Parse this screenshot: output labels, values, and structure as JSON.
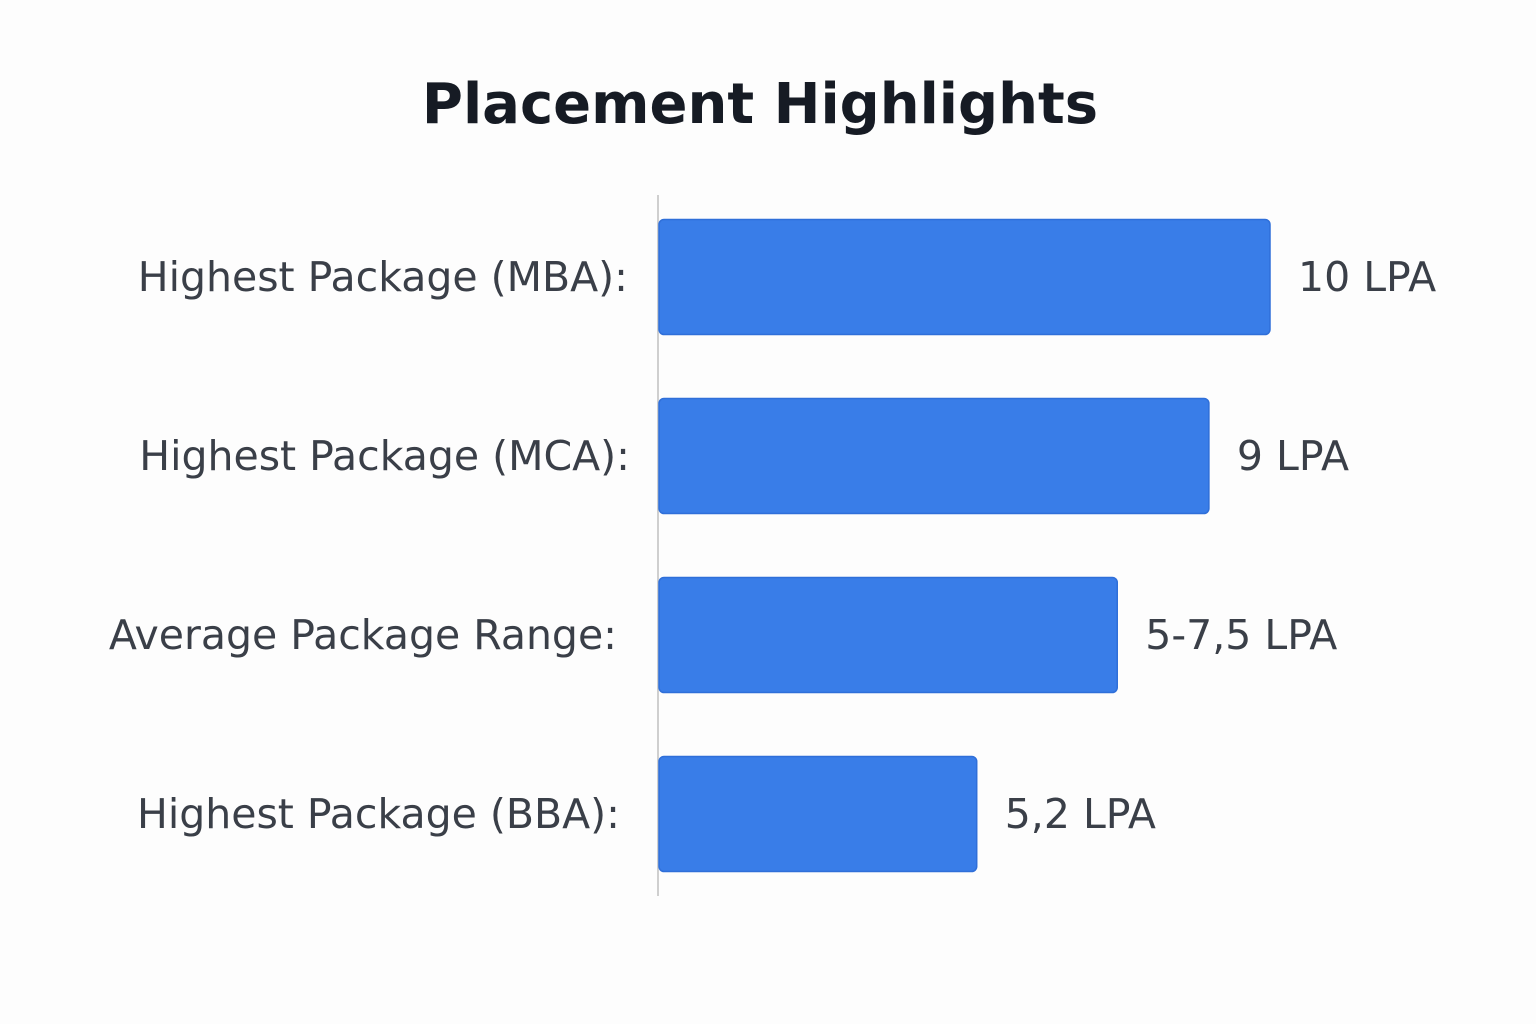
{
  "chart_data": {
    "type": "bar",
    "orientation": "horizontal",
    "title": "Placement Highlights",
    "unit": "LPA",
    "categories": [
      "Highest Package (MBA):",
      "Highest Package (MCA):",
      "Average Package Range:",
      "Highest Package (BBA):"
    ],
    "values": [
      10,
      9,
      7.5,
      5.2
    ],
    "value_labels": [
      "10 LPA",
      "9 LPA",
      "5-7,5 LPA",
      "5,2 LPA"
    ],
    "xlim": [
      0,
      10
    ],
    "xlabel": "",
    "ylabel": "",
    "grid": false,
    "colors": {
      "bar": "#397de8",
      "bar_edge": "#2f6fd9",
      "axis": "#cfcfcf",
      "text": "#3a3f48",
      "title": "#161b24",
      "background": "#fdfdfd"
    }
  }
}
